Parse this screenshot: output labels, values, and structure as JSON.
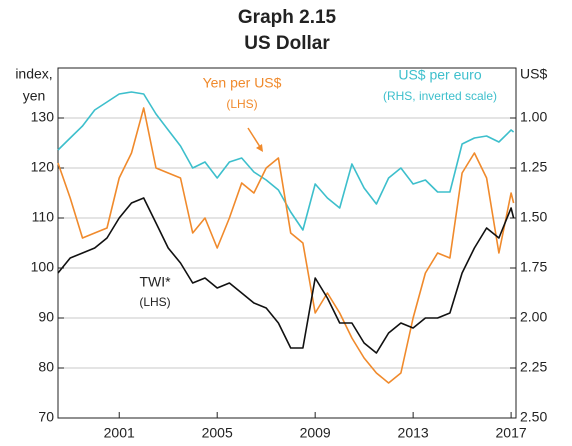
{
  "chart_data": {
    "type": "line",
    "title": "Graph 2.15",
    "subtitle": "US Dollar",
    "y_label_lines": [
      "index,",
      "yen"
    ],
    "y2_label": "US$",
    "x": [
      1998.5,
      1999,
      1999.5,
      2000,
      2000.5,
      2001,
      2001.5,
      2002,
      2002.5,
      2003,
      2003.5,
      2004,
      2004.5,
      2005,
      2005.5,
      2006,
      2006.5,
      2007,
      2007.5,
      2008,
      2008.5,
      2009,
      2009.5,
      2010,
      2010.5,
      2011,
      2011.5,
      2012,
      2012.5,
      2013,
      2013.5,
      2014,
      2014.5,
      2015,
      2015.5,
      2016,
      2016.5,
      2017,
      2017.1
    ],
    "xlim": [
      1998.5,
      2017.2
    ],
    "xticks": [
      2001,
      2005,
      2009,
      2013,
      2017
    ],
    "ylim": [
      70,
      140
    ],
    "yticks": [
      70,
      80,
      90,
      100,
      110,
      120,
      130
    ],
    "y2lim": [
      2.5,
      0.75
    ],
    "y2ticks": [
      {
        "value": 1.0,
        "label": "1.00"
      },
      {
        "value": 1.25,
        "label": "1.25"
      },
      {
        "value": 1.5,
        "label": "1.50"
      },
      {
        "value": 1.75,
        "label": "1.75"
      },
      {
        "value": 2.0,
        "label": "2.00"
      },
      {
        "value": 2.25,
        "label": "2.25"
      },
      {
        "value": 2.5,
        "label": "2.50"
      }
    ],
    "grid": true,
    "series": [
      {
        "name": "US$ per euro",
        "color": "#3dbfcc",
        "axis": "y2",
        "note": "(RHS, inverted scale)",
        "values": [
          1.16,
          1.1,
          1.04,
          0.96,
          0.92,
          0.88,
          0.87,
          0.88,
          0.98,
          1.06,
          1.14,
          1.25,
          1.22,
          1.3,
          1.22,
          1.2,
          1.27,
          1.31,
          1.36,
          1.47,
          1.56,
          1.33,
          1.4,
          1.45,
          1.23,
          1.35,
          1.43,
          1.3,
          1.25,
          1.33,
          1.31,
          1.37,
          1.37,
          1.13,
          1.1,
          1.09,
          1.12,
          1.06,
          1.07
        ]
      },
      {
        "name": "Yen per US$",
        "color": "#f08a2c",
        "note": "(LHS)",
        "values": [
          121,
          114,
          106,
          107,
          108,
          118,
          123,
          132,
          120,
          119,
          118,
          107,
          110,
          104,
          110,
          117,
          115,
          120,
          122,
          107,
          105,
          91,
          95,
          91,
          86,
          82,
          79,
          77,
          79,
          90,
          99,
          103,
          102,
          119,
          123,
          118,
          103,
          115,
          113
        ]
      },
      {
        "name": "TWI*",
        "color": "#111111",
        "note": "(LHS)",
        "values": [
          99,
          102,
          103,
          104,
          106,
          110,
          113,
          114,
          109,
          104,
          101,
          97,
          98,
          96,
          97,
          95,
          93,
          92,
          89,
          84,
          84,
          98,
          94,
          89,
          89,
          85,
          83,
          87,
          89,
          88,
          90,
          90,
          91,
          99,
          104,
          108,
          106,
          112,
          110
        ]
      }
    ]
  }
}
